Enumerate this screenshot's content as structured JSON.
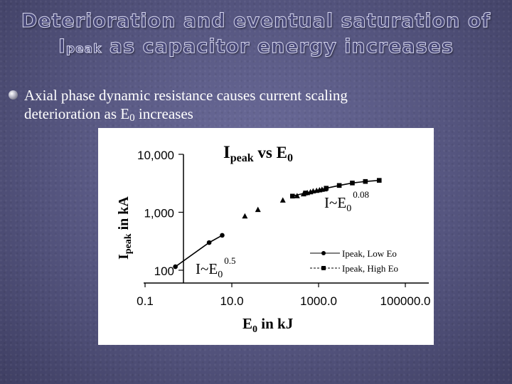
{
  "slide": {
    "title_line1": "Deterioration and eventual saturation of",
    "title_line2_main": "I",
    "title_line2_sub": "peak",
    "title_line2_rest": " as capacitor energy increases",
    "bullet_line1": "Axial phase dynamic resistance causes current scaling",
    "bullet_line2_pre": "deterioration as E",
    "bullet_line2_sub": "0",
    "bullet_line2_post": " increases"
  },
  "chart_data": {
    "type": "scatter",
    "title_main": "I",
    "title_sub": "peak",
    "title_vs": " vs  E",
    "title_sub2": "0",
    "xlabel_main": "E",
    "xlabel_sub": "0",
    "xlabel_rest": " in kJ",
    "ylabel_main": "I",
    "ylabel_sub": "peak",
    "ylabel_rest": " in  kA",
    "x_scale": "log",
    "y_scale": "log",
    "xlim": [
      0.1,
      100000
    ],
    "ylim": [
      100,
      10000
    ],
    "x_ticks": [
      {
        "value": 0.1,
        "label": "0.1"
      },
      {
        "value": 10,
        "label": "10.0"
      },
      {
        "value": 1000,
        "label": "1000.0"
      },
      {
        "value": 100000,
        "label": "100000.0"
      }
    ],
    "y_ticks": [
      {
        "value": 100,
        "label": "100"
      },
      {
        "value": 1000,
        "label": "1,000"
      },
      {
        "value": 10000,
        "label": "10,000"
      }
    ],
    "series": [
      {
        "name": "Ipeak, Low Eo",
        "marker": "circle",
        "line": true,
        "points": [
          [
            0.5,
            115
          ],
          [
            3,
            300
          ],
          [
            6,
            400
          ]
        ]
      },
      {
        "name": "Ipeak, High Eo",
        "marker": "square",
        "line": true,
        "points": [
          [
            250,
            1900
          ],
          [
            500,
            2150
          ],
          [
            1500,
            2600
          ],
          [
            3000,
            2900
          ],
          [
            6000,
            3200
          ],
          [
            12000,
            3400
          ],
          [
            25000,
            3550
          ]
        ]
      },
      {
        "name": "",
        "marker": "triangle",
        "line": false,
        "points": [
          [
            20,
            850
          ],
          [
            40,
            1100
          ],
          [
            150,
            1600
          ],
          [
            320,
            1900
          ],
          [
            450,
            2050
          ],
          [
            550,
            2150
          ],
          [
            650,
            2220
          ],
          [
            750,
            2300
          ],
          [
            900,
            2350
          ],
          [
            1050,
            2400
          ],
          [
            1200,
            2450
          ],
          [
            1400,
            2500
          ]
        ]
      }
    ],
    "annotations": [
      {
        "base": "I~E",
        "sub": "0",
        "sup": "0.08"
      },
      {
        "base": "I~E",
        "sub": "0",
        "sup": "0.5"
      }
    ],
    "legend_position": "bottom-right",
    "grid": false
  }
}
